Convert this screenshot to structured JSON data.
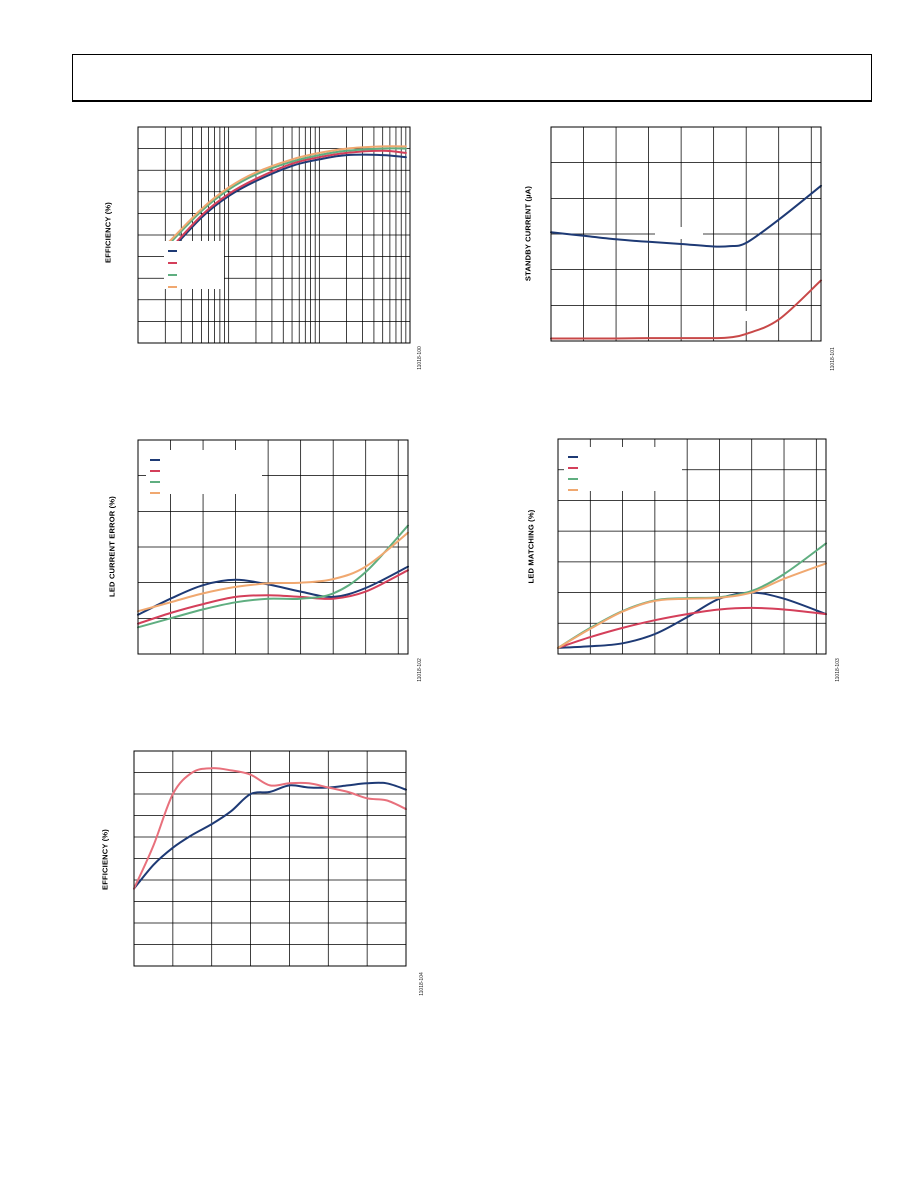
{
  "header": {},
  "colors": {
    "navy": "#1e3a75",
    "red": "#d43f5a",
    "green": "#5fae80",
    "orange": "#f0a870",
    "salmon": "#e8707c",
    "darkred": "#c84848"
  },
  "chart_data": [
    {
      "id": "efficiency-vs-load",
      "type": "line",
      "ylabel": "EFFICIENCY (%)",
      "figure_id": "11018-100",
      "x_scale": "log",
      "grid": true,
      "legend": {
        "placement": "middle-left",
        "entries": 4
      },
      "series": [
        {
          "color": "navy",
          "x": [
            0.02,
            0.05,
            0.1,
            0.2,
            0.5,
            1,
            2,
            5,
            9
          ],
          "y": [
            40,
            58,
            68,
            75,
            82,
            85,
            87,
            87,
            86
          ]
        },
        {
          "color": "red",
          "x": [
            0.02,
            0.05,
            0.1,
            0.2,
            0.5,
            1,
            2,
            5,
            9
          ],
          "y": [
            41,
            59,
            69,
            76,
            83,
            86,
            88,
            89,
            88
          ]
        },
        {
          "color": "green",
          "x": [
            0.02,
            0.05,
            0.1,
            0.2,
            0.5,
            1,
            2,
            5,
            9
          ],
          "y": [
            44,
            61,
            71,
            78,
            84,
            87,
            89,
            90,
            90
          ]
        },
        {
          "color": "orange",
          "x": [
            0.02,
            0.05,
            0.1,
            0.2,
            0.5,
            1,
            2,
            5,
            9
          ],
          "y": [
            45,
            62,
            72,
            79,
            85,
            88,
            90,
            91,
            91
          ]
        }
      ]
    },
    {
      "id": "standby-current",
      "type": "line",
      "ylabel": "STANDBY CURRENT (µA)",
      "figure_id": "11018-101",
      "grid": true,
      "series": [
        {
          "color": "navy",
          "x": [
            0,
            1,
            2,
            3,
            4,
            5,
            5.5,
            6,
            7,
            8.3
          ],
          "y": [
            3.05,
            2.95,
            2.85,
            2.78,
            2.72,
            2.65,
            2.66,
            2.75,
            3.4,
            4.35
          ]
        },
        {
          "color": "darkred",
          "x": [
            0,
            1,
            2,
            3,
            4,
            5,
            5.5,
            6,
            7,
            8.3
          ],
          "y": [
            0.07,
            0.07,
            0.07,
            0.08,
            0.08,
            0.08,
            0.1,
            0.2,
            0.6,
            1.7
          ]
        }
      ]
    },
    {
      "id": "led-current-error",
      "type": "line",
      "ylabel": "LED CURRENT ERROR (%)",
      "figure_id": "11018-102",
      "grid": true,
      "legend": {
        "placement": "top-left",
        "entries": 4
      },
      "series": [
        {
          "color": "navy",
          "x": [
            0,
            1,
            2,
            3,
            4,
            5,
            6,
            7,
            8.3
          ],
          "y": [
            1.1,
            1.55,
            1.93,
            2.08,
            1.95,
            1.75,
            1.6,
            1.85,
            2.45
          ]
        },
        {
          "color": "red",
          "x": [
            0,
            1,
            2,
            3,
            4,
            5,
            6,
            7,
            8.3
          ],
          "y": [
            0.85,
            1.15,
            1.4,
            1.6,
            1.65,
            1.6,
            1.55,
            1.75,
            2.35
          ]
        },
        {
          "color": "green",
          "x": [
            0,
            1,
            2,
            3,
            4,
            5,
            6,
            7,
            8.3
          ],
          "y": [
            0.75,
            1.0,
            1.25,
            1.45,
            1.55,
            1.55,
            1.7,
            2.3,
            3.6
          ]
        },
        {
          "color": "orange",
          "x": [
            0,
            1,
            2,
            3,
            4,
            5,
            6,
            7,
            8.3
          ],
          "y": [
            1.2,
            1.45,
            1.7,
            1.88,
            1.98,
            2.0,
            2.1,
            2.45,
            3.4
          ]
        }
      ]
    },
    {
      "id": "led-matching",
      "type": "line",
      "ylabel": "LED MATCHING (%)",
      "figure_id": "11018-103",
      "grid": true,
      "legend": {
        "placement": "top-left",
        "entries": 4
      },
      "series": [
        {
          "color": "navy",
          "x": [
            0,
            1,
            2,
            3,
            4,
            5,
            6,
            7,
            8.3
          ],
          "y": [
            0.2,
            0.25,
            0.35,
            0.65,
            1.2,
            1.8,
            2.0,
            1.8,
            1.3
          ]
        },
        {
          "color": "red",
          "x": [
            0,
            1,
            2,
            3,
            4,
            5,
            6,
            7,
            8.3
          ],
          "y": [
            0.2,
            0.55,
            0.85,
            1.1,
            1.3,
            1.45,
            1.5,
            1.45,
            1.3
          ]
        },
        {
          "color": "green",
          "x": [
            0,
            1,
            2,
            3,
            4,
            5,
            6,
            7,
            8.3
          ],
          "y": [
            0.2,
            0.85,
            1.4,
            1.75,
            1.82,
            1.85,
            2.05,
            2.6,
            3.6
          ]
        },
        {
          "color": "orange",
          "x": [
            0,
            1,
            2,
            3,
            4,
            5,
            6,
            7,
            8.3
          ],
          "y": [
            0.2,
            0.82,
            1.38,
            1.73,
            1.8,
            1.83,
            2.0,
            2.45,
            2.95
          ]
        }
      ]
    },
    {
      "id": "efficiency-vs-vin",
      "type": "line",
      "ylabel": "EFFICIENCY (%)",
      "figure_id": "11018-104",
      "grid": true,
      "series": [
        {
          "color": "navy",
          "x": [
            0,
            0.5,
            1,
            1.5,
            2,
            2.5,
            3,
            3.5,
            4,
            4.5,
            5,
            5.5,
            6,
            6.5,
            7
          ],
          "y": [
            3.6,
            4.7,
            5.5,
            6.1,
            6.6,
            7.2,
            8.0,
            8.1,
            8.4,
            8.3,
            8.3,
            8.4,
            8.5,
            8.5,
            8.2
          ]
        },
        {
          "color": "salmon",
          "x": [
            0,
            0.5,
            1,
            1.5,
            2,
            2.5,
            3,
            3.5,
            4,
            4.5,
            5,
            5.5,
            6,
            6.5,
            7
          ],
          "y": [
            3.6,
            5.6,
            8.0,
            9.0,
            9.2,
            9.1,
            8.9,
            8.4,
            8.5,
            8.5,
            8.3,
            8.1,
            7.8,
            7.7,
            7.3
          ]
        }
      ]
    }
  ]
}
